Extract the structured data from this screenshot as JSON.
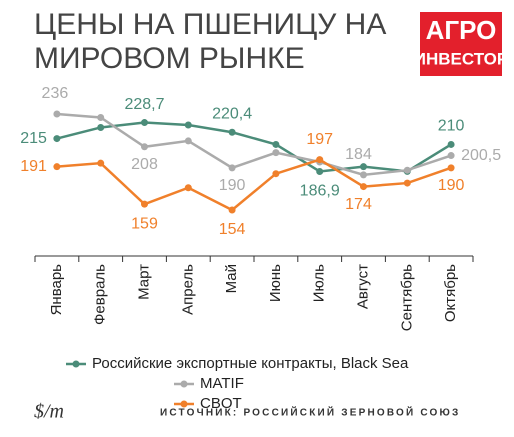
{
  "title_lines": [
    "ЦЕНЫ НА ПШЕНИЦУ НА",
    "МИРОВОМ РЫНКЕ"
  ],
  "logo": [
    "АГРО",
    "ИНВЕСТОР"
  ],
  "unit": "$/т",
  "source": "ИСТОЧНИК: РОССИЙСКИЙ ЗЕРНОВОЙ СОЮЗ",
  "chart_data": {
    "type": "line",
    "categories": [
      "Январь",
      "Февраль",
      "Март",
      "Апрель",
      "Май",
      "Июнь",
      "Июль",
      "Август",
      "Сентябрь",
      "Октябрь"
    ],
    "legend": "bottom",
    "series": [
      {
        "name": "Российские экспортные контракты, Black Sea",
        "color": "#4b8c79",
        "values": [
          215,
          224.5,
          228.7,
          226.6,
          220.4,
          210,
          186.9,
          191,
          187,
          210
        ],
        "value_labels": [
          "215",
          null,
          "228,7",
          null,
          "220,4",
          null,
          "186,9",
          null,
          null,
          "210"
        ]
      },
      {
        "name": "MATIF",
        "color": "#ababab",
        "values": [
          236,
          233,
          208,
          213,
          190,
          203,
          195,
          184,
          188,
          200.5
        ],
        "value_labels": [
          "236",
          null,
          "208",
          null,
          "190",
          null,
          null,
          "184",
          null,
          "200,5"
        ]
      },
      {
        "name": "CBOT",
        "color": "#f0802b",
        "values": [
          191,
          194,
          159,
          173,
          154,
          185,
          197,
          174,
          177,
          190
        ],
        "value_labels": [
          "191",
          null,
          "159",
          null,
          "154",
          null,
          "197",
          "174",
          null,
          "190"
        ]
      }
    ]
  }
}
